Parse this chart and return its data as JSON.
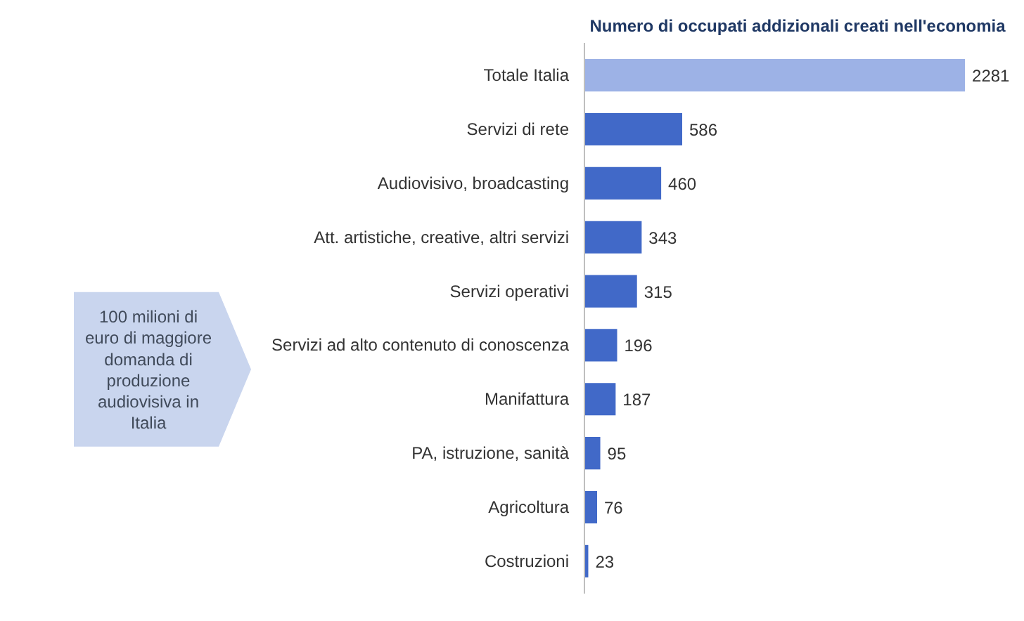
{
  "chart_data": {
    "type": "bar",
    "orientation": "horizontal",
    "title": "Numero di occupati addizionali creati nell'economia",
    "categories": [
      "Totale Italia",
      "Servizi di rete",
      "Audiovisivo, broadcasting",
      "Att. artistiche, creative, altri servizi",
      "Servizi operativi",
      "Servizi ad alto contenuto di conoscenza",
      "Manifattura",
      "PA, istruzione, sanità",
      "Agricoltura",
      "Costruzioni"
    ],
    "values": [
      2281,
      586,
      460,
      343,
      315,
      196,
      187,
      95,
      76,
      23
    ],
    "colors": [
      "#9db2e6",
      "#4169c8",
      "#4169c8",
      "#4169c8",
      "#4169c8",
      "#4169c8",
      "#4169c8",
      "#4169c8",
      "#4169c8",
      "#4169c8"
    ],
    "data_labels": true,
    "grid": false,
    "tick_labels": "y",
    "annotations": [
      "100 milioni di euro di maggiore domanda di produzione audiovisiva in Italia"
    ]
  }
}
